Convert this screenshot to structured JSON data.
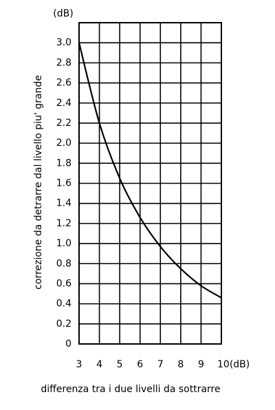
{
  "chart_data": {
    "type": "line",
    "y_unit": "(dB)",
    "y_label": "correzione da detrarre dal livello piu' grande",
    "x_label": "differenza tra i due livelli da sottrarre",
    "x": [
      3,
      4,
      5,
      6,
      7,
      8,
      9,
      10
    ],
    "series": [
      {
        "color": "#000000",
        "values": [
          3.0,
          2.2,
          1.65,
          1.26,
          0.97,
          0.75,
          0.58,
          0.46
        ]
      }
    ],
    "xlim": [
      3,
      10
    ],
    "xticks": [
      3,
      4,
      5,
      6,
      7,
      8,
      9,
      {
        "value": 10,
        "label": "10(dB)"
      }
    ],
    "ylim": [
      0,
      3.2
    ],
    "yticks": [
      0,
      0.2,
      0.4,
      0.6,
      0.8,
      {
        "value": 1,
        "label": "1.0"
      },
      1.2,
      1.4,
      1.6,
      1.8,
      {
        "value": 2,
        "label": "2.0"
      },
      2.2,
      2.4,
      2.6,
      2.8,
      {
        "value": 3,
        "label": "3.0"
      }
    ],
    "grid": true
  }
}
